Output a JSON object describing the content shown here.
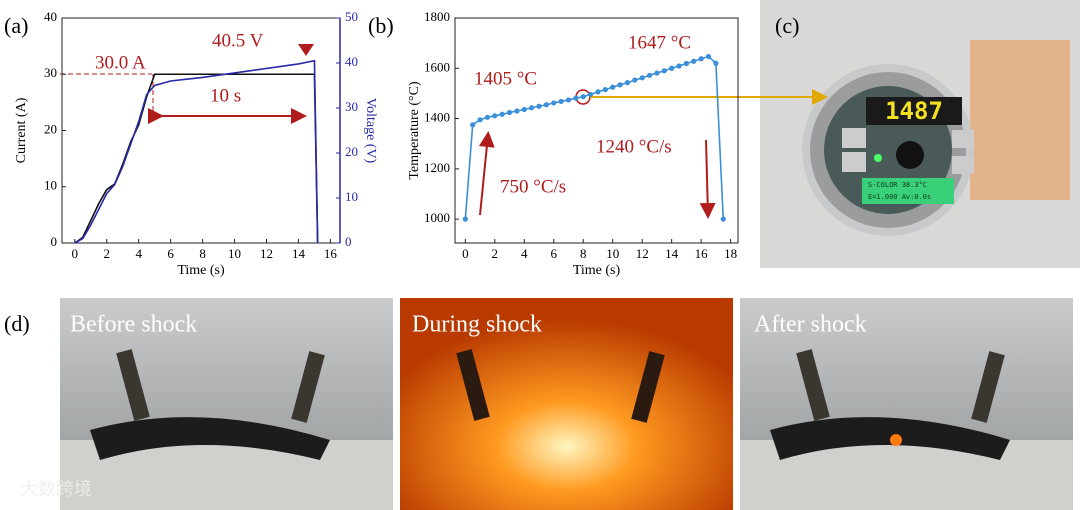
{
  "chart_data": [
    {
      "type": "line",
      "xlabel": "Time (s)",
      "ylabel": "Current (A)",
      "y2label": "Voltage (V)",
      "x": [
        0,
        0.5,
        1,
        1.5,
        2,
        2.5,
        3,
        3.5,
        4,
        4.5,
        5,
        6,
        7,
        8,
        9,
        10,
        11,
        12,
        13,
        14,
        15,
        15.2
      ],
      "series": [
        {
          "name": "Current",
          "color": "#111111",
          "values": [
            0,
            1,
            4,
            7,
            9.5,
            10.5,
            14,
            18,
            21,
            26,
            30,
            30,
            30,
            30,
            30,
            30,
            30,
            30,
            30,
            30,
            30,
            0
          ]
        },
        {
          "name": "Voltage",
          "color": "#2a2aa8",
          "axis": "y2",
          "values": [
            0,
            1,
            4,
            7.5,
            11,
            13,
            17,
            22,
            27,
            33,
            35,
            36,
            36.4,
            36.8,
            37.3,
            37.8,
            38.3,
            38.8,
            39.3,
            39.8,
            40.5,
            0
          ]
        }
      ],
      "xlim": [
        -0.8,
        16.6
      ],
      "xticks": [
        0,
        2,
        4,
        6,
        8,
        10,
        12,
        14,
        16
      ],
      "ylim": [
        0,
        40
      ],
      "yticks": [
        0,
        10,
        20,
        30,
        40
      ],
      "y2lim": [
        0,
        50
      ],
      "y2ticks": [
        0,
        10,
        20,
        30,
        40,
        50
      ],
      "annotations": [
        "30.0 A",
        "40.5 V",
        "10 s"
      ]
    },
    {
      "type": "line",
      "markers": true,
      "xlabel": "Time (s)",
      "ylabel": "Temperature (°C)",
      "x": [
        0,
        0.5,
        1,
        1.5,
        2,
        2.5,
        3,
        3.5,
        4,
        4.5,
        5,
        5.5,
        6,
        6.5,
        7,
        7.5,
        8,
        8.5,
        9,
        9.5,
        10,
        10.5,
        11,
        11.5,
        12,
        12.5,
        13,
        13.5,
        14,
        14.5,
        15,
        15.5,
        16,
        16.5,
        17,
        17.5
      ],
      "series": [
        {
          "name": "Temperature",
          "color": "#3a8fd8",
          "values": [
            1000,
            1375,
            1395,
            1405,
            1411,
            1417,
            1424,
            1430,
            1436,
            1443,
            1449,
            1455,
            1462,
            1468,
            1474,
            1481,
            1487,
            1496,
            1506,
            1515,
            1525,
            1534,
            1543,
            1553,
            1562,
            1572,
            1581,
            1590,
            1600,
            1609,
            1619,
            1628,
            1638,
            1647,
            1620,
            1000
          ]
        }
      ],
      "xlim": [
        -0.7,
        18.5
      ],
      "xticks": [
        0,
        2,
        4,
        6,
        8,
        10,
        12,
        14,
        16,
        18
      ],
      "ylim": [
        905,
        1800
      ],
      "yticks": [
        1000,
        1200,
        1400,
        1600,
        1800
      ],
      "annotations": [
        "1405 °C",
        "1647 °C",
        "750 °C/s",
        "1240 °C/s"
      ]
    }
  ],
  "panels": {
    "labels": [
      "(a)",
      "(b)",
      "(c)",
      "(d)"
    ],
    "display": "1487",
    "display_lines": [
      "S-COLOR  38.3°C",
      "E=1.000  Av:0.0s"
    ],
    "captions": [
      "Before shock",
      "During shock",
      "After shock"
    ],
    "watermark": "大数跨境"
  }
}
